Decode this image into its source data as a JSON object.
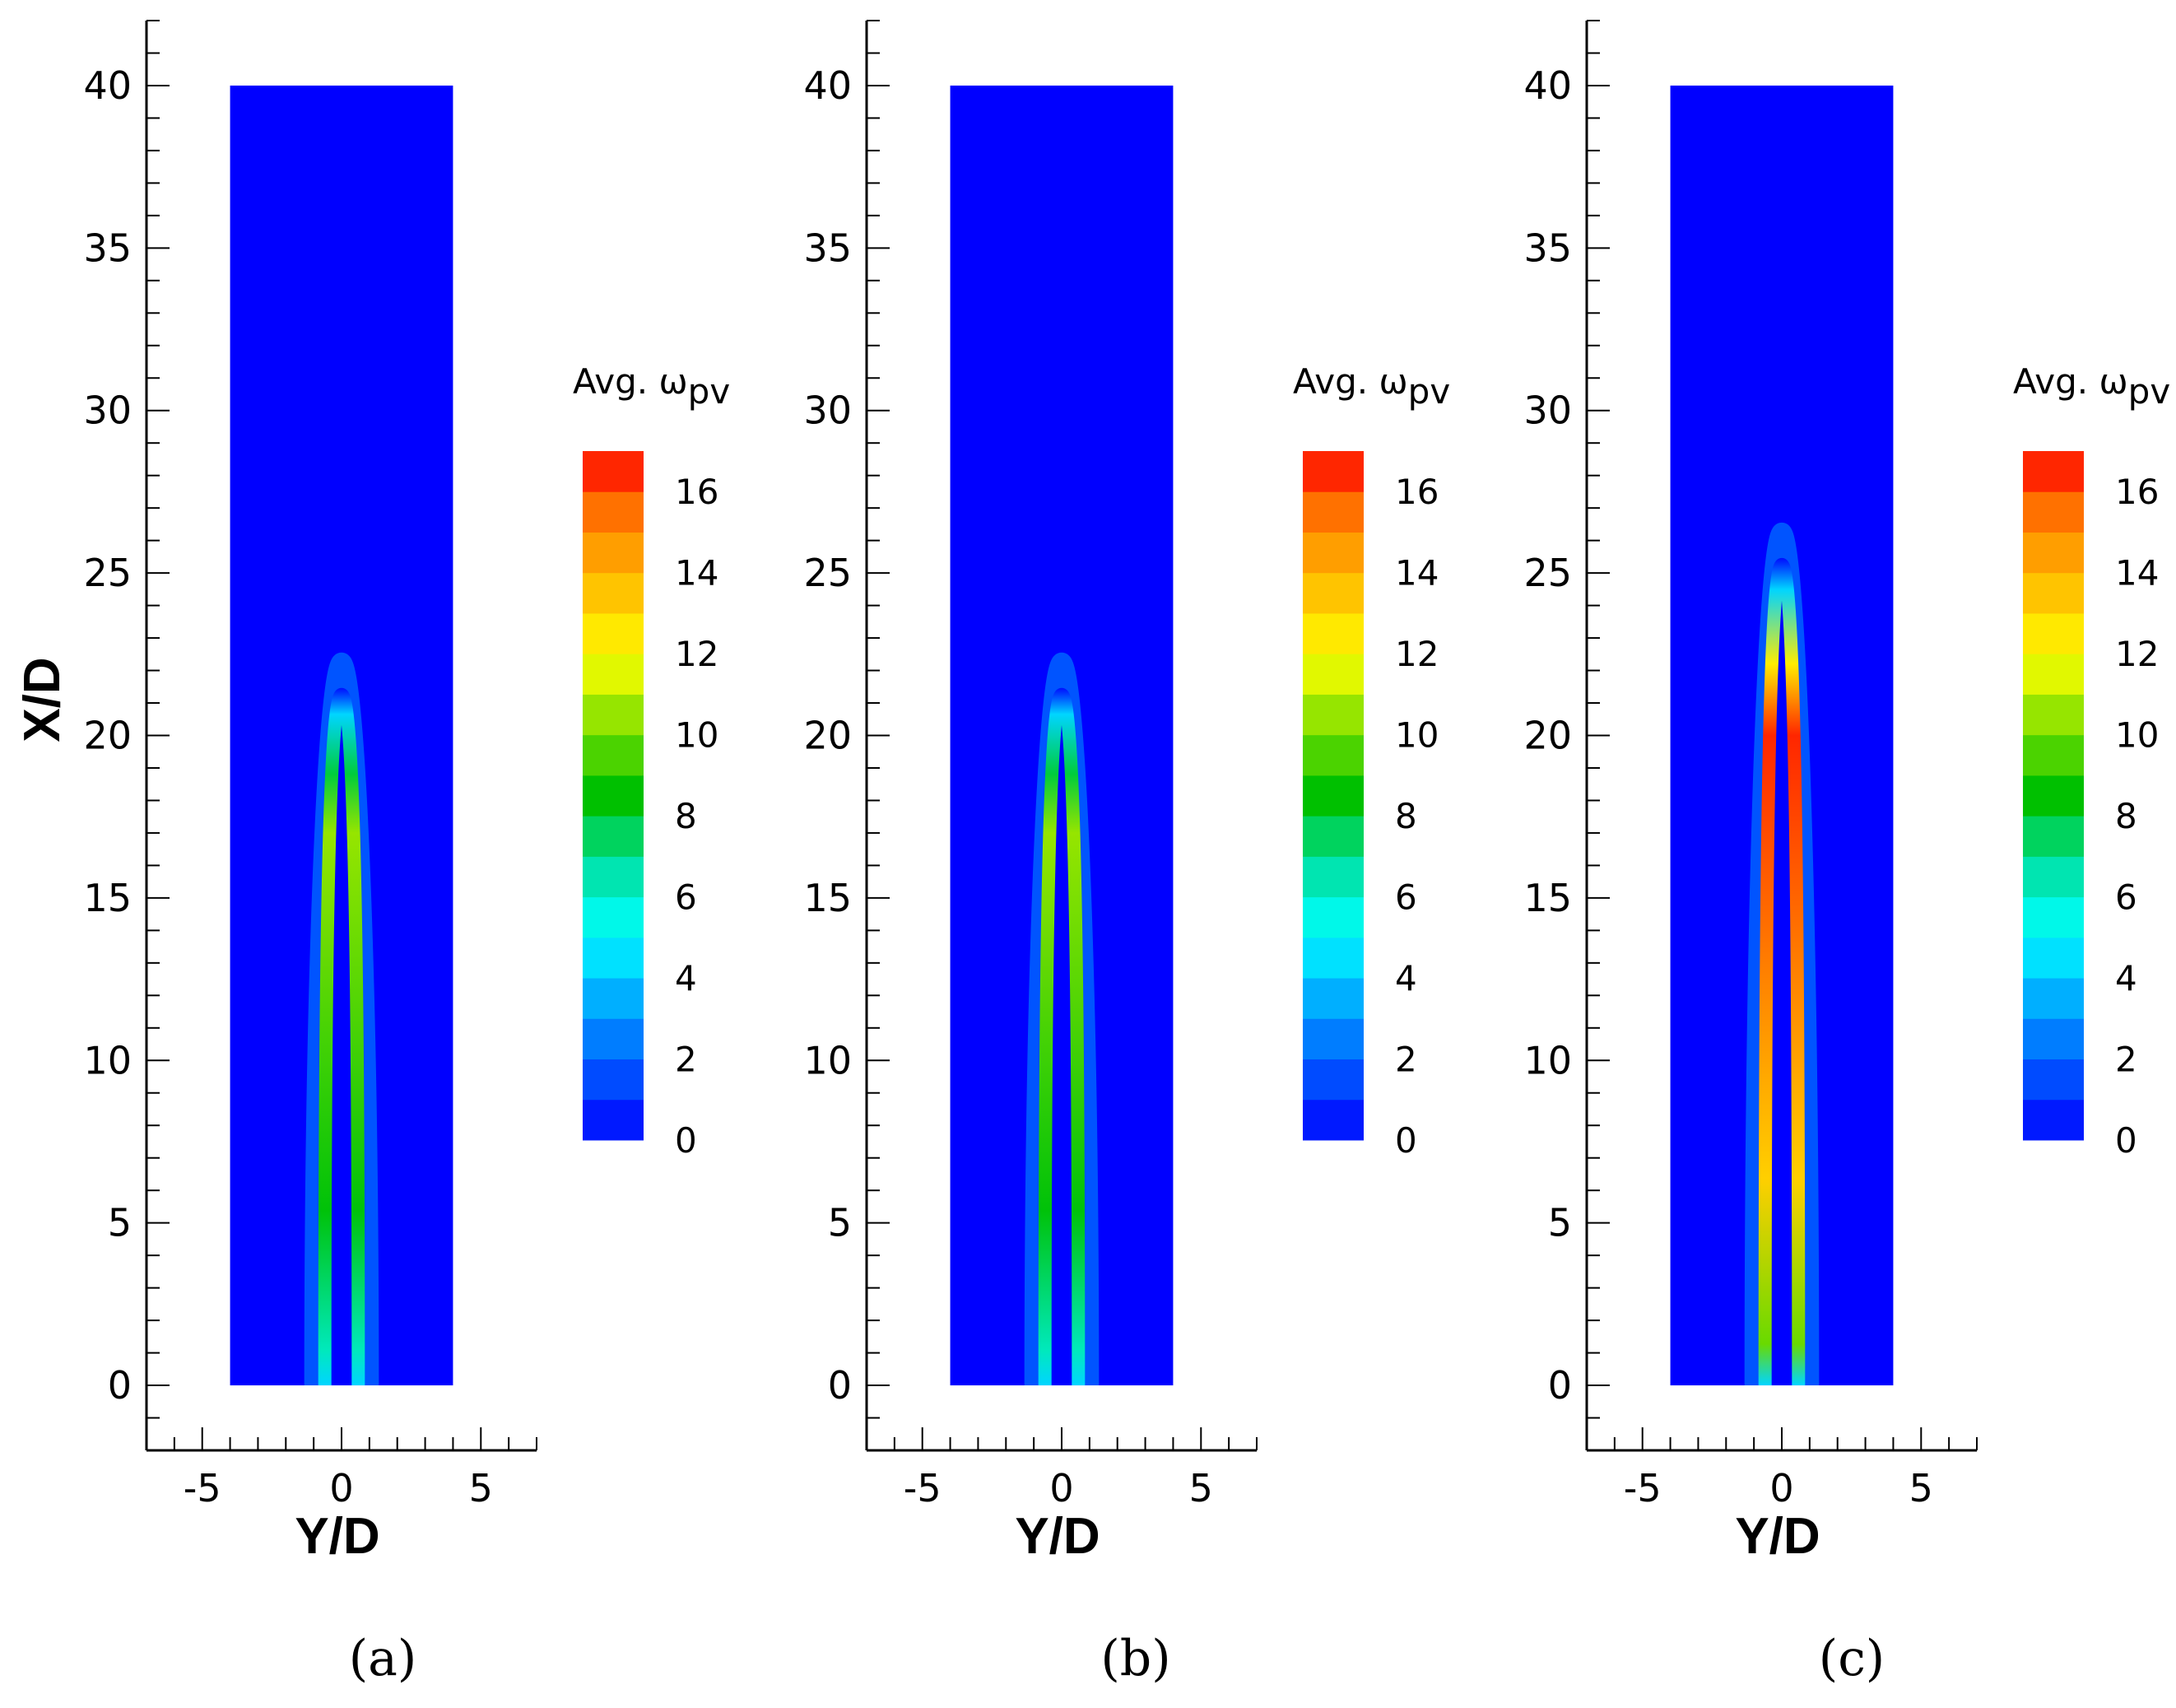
{
  "colors": {
    "field_background": "#0000ff",
    "axis": "#000000"
  },
  "colormap": [
    "#0000ff",
    "#0055ff",
    "#00aaff",
    "#00ffff",
    "#00e0a0",
    "#00c000",
    "#80e000",
    "#ffff00",
    "#ffc000",
    "#ff8000",
    "#ff0000"
  ],
  "chart_data": [
    {
      "type": "heatmap",
      "panel_label": "(a)",
      "xlabel": "Y/D",
      "ylabel": "X/D",
      "xlim": [
        -7,
        7
      ],
      "ylim": [
        -2,
        42
      ],
      "x_ticks": [
        "-5",
        "0",
        "5"
      ],
      "y_ticks": [
        "0",
        "5",
        "10",
        "15",
        "20",
        "25",
        "30",
        "35",
        "40"
      ],
      "domain": {
        "y_range": [
          -4,
          4
        ],
        "x_range": [
          0,
          40
        ]
      },
      "colorbar": {
        "title": "Avg. ω",
        "subscript": "pv",
        "range": [
          0,
          17
        ],
        "ticks": [
          "0",
          "2",
          "4",
          "6",
          "8",
          "10",
          "12",
          "14",
          "16"
        ]
      },
      "field": {
        "shear_layer_radius": 0.6,
        "tip_x_d": 20.5,
        "peak_value": 10.5,
        "peak_x_d": 17
      }
    },
    {
      "type": "heatmap",
      "panel_label": "(b)",
      "xlabel": "Y/D",
      "ylabel": "",
      "xlim": [
        -7,
        7
      ],
      "ylim": [
        -2,
        42
      ],
      "x_ticks": [
        "-5",
        "0",
        "5"
      ],
      "y_ticks": [
        "0",
        "5",
        "10",
        "15",
        "20",
        "25",
        "30",
        "35",
        "40"
      ],
      "domain": {
        "y_range": [
          -4,
          4
        ],
        "x_range": [
          0,
          40
        ]
      },
      "colorbar": {
        "title": "Avg. ω",
        "subscript": "pv",
        "range": [
          0,
          17
        ],
        "ticks": [
          "0",
          "2",
          "4",
          "6",
          "8",
          "10",
          "12",
          "14",
          "16"
        ]
      },
      "field": {
        "shear_layer_radius": 0.6,
        "tip_x_d": 20.5,
        "peak_value": 10.5,
        "peak_x_d": 17
      }
    },
    {
      "type": "heatmap",
      "panel_label": "(c)",
      "xlabel": "Y/D",
      "ylabel": "",
      "xlim": [
        -7,
        7
      ],
      "ylim": [
        -2,
        42
      ],
      "x_ticks": [
        "-5",
        "0",
        "5"
      ],
      "y_ticks": [
        "0",
        "5",
        "10",
        "15",
        "20",
        "25",
        "30",
        "35",
        "40"
      ],
      "domain": {
        "y_range": [
          -4,
          4
        ],
        "x_range": [
          0,
          40
        ]
      },
      "colorbar": {
        "title": "Avg. ω",
        "subscript": "pv",
        "range": [
          0,
          17
        ],
        "ticks": [
          "0",
          "2",
          "4",
          "6",
          "8",
          "10",
          "12",
          "14",
          "16"
        ]
      },
      "field": {
        "shear_layer_radius": 0.6,
        "tip_x_d": 24.5,
        "peak_value": 16.5,
        "peak_x_d": 20
      }
    }
  ]
}
